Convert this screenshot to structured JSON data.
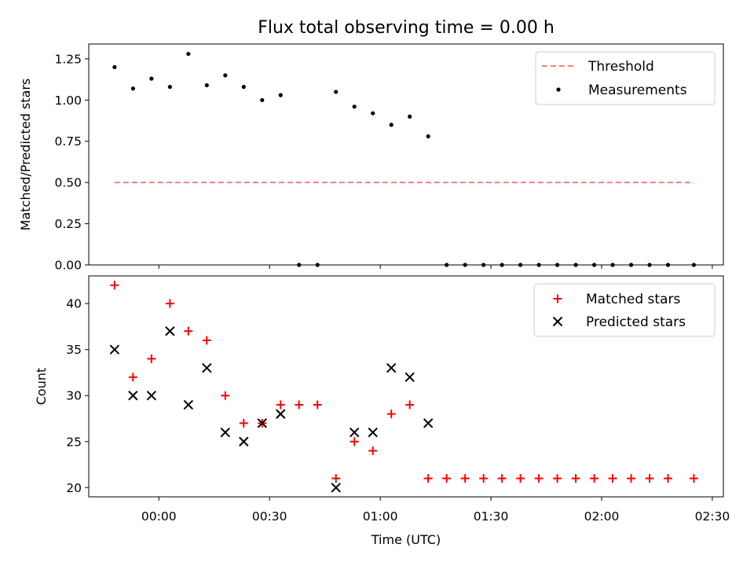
{
  "chart_data": [
    {
      "type": "scatter",
      "title": "Flux total observing time = 0.00 h",
      "xlabel": "",
      "ylabel": "Matched/Predicted stars",
      "ylim": [
        0,
        1.34
      ],
      "yticks": [
        "0.00",
        "0.25",
        "0.50",
        "0.75",
        "1.00",
        "1.25"
      ],
      "legend_position": "upper right",
      "series": [
        {
          "name": "Threshold",
          "style": "dashed-line",
          "color": "#ff7f7f",
          "x": [
            "23:48",
            "02:25"
          ],
          "y": [
            0.5,
            0.5
          ]
        },
        {
          "name": "Measurements",
          "style": "dot",
          "color": "#000000",
          "x": [
            "23:48",
            "23:53",
            "23:58",
            "00:03",
            "00:08",
            "00:13",
            "00:18",
            "00:23",
            "00:28",
            "00:33",
            "00:38",
            "00:43",
            "00:48",
            "00:53",
            "00:58",
            "01:03",
            "01:08",
            "01:13",
            "01:18",
            "01:23",
            "01:28",
            "01:33",
            "01:38",
            "01:43",
            "01:48",
            "01:53",
            "01:58",
            "02:03",
            "02:08",
            "02:13",
            "02:18",
            "02:25"
          ],
          "y": [
            1.2,
            1.07,
            1.13,
            1.08,
            1.28,
            1.09,
            1.15,
            1.08,
            1.0,
            1.03,
            0,
            0,
            1.05,
            0.96,
            0.92,
            0.85,
            0.9,
            0.78,
            0,
            0,
            0,
            0,
            0,
            0,
            0,
            0,
            0,
            0,
            0,
            0,
            0,
            0
          ]
        }
      ]
    },
    {
      "type": "scatter",
      "title": "",
      "xlabel": "Time (UTC)",
      "ylabel": "Count",
      "ylim": [
        19,
        43
      ],
      "yticks": [
        "20",
        "25",
        "30",
        "35",
        "40"
      ],
      "xticks": [
        "00:00",
        "00:30",
        "01:00",
        "01:30",
        "02:00",
        "02:30"
      ],
      "xlim": [
        "23:41",
        "02:33"
      ],
      "legend_position": "upper right",
      "series": [
        {
          "name": "Matched stars",
          "marker": "plus",
          "color": "#ff0000",
          "x": [
            "23:48",
            "23:53",
            "23:58",
            "00:03",
            "00:08",
            "00:13",
            "00:18",
            "00:23",
            "00:28",
            "00:33",
            "00:38",
            "00:43",
            "00:48",
            "00:53",
            "00:58",
            "01:03",
            "01:08",
            "01:13",
            "01:18",
            "01:23",
            "01:28",
            "01:33",
            "01:38",
            "01:43",
            "01:48",
            "01:53",
            "01:58",
            "02:03",
            "02:08",
            "02:13",
            "02:18",
            "02:25"
          ],
          "y": [
            42,
            32,
            34,
            40,
            37,
            36,
            30,
            27,
            27,
            29,
            29,
            29,
            21,
            25,
            24,
            28,
            29,
            21,
            21,
            21,
            21,
            21,
            21,
            21,
            21,
            21,
            21,
            21,
            21,
            21,
            21,
            21
          ]
        },
        {
          "name": "Predicted stars",
          "marker": "x",
          "color": "#000000",
          "x": [
            "23:48",
            "23:53",
            "23:58",
            "00:03",
            "00:08",
            "00:13",
            "00:18",
            "00:23",
            "00:28",
            "00:33",
            "00:48",
            "00:53",
            "00:58",
            "01:03",
            "01:08",
            "01:13"
          ],
          "y": [
            35,
            30,
            30,
            37,
            29,
            33,
            26,
            25,
            27,
            28,
            20,
            26,
            26,
            33,
            32,
            27
          ]
        }
      ]
    }
  ]
}
